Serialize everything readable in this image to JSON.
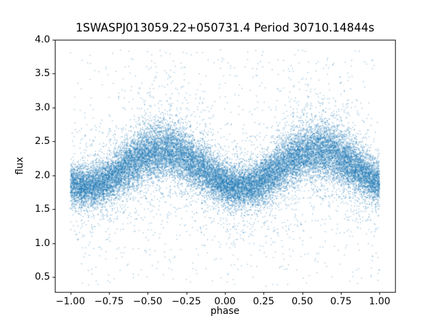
{
  "chart_data": {
    "type": "scatter",
    "title": "1SWASPJ013059.22+050731.4 Period 30710.14844s",
    "xlabel": "phase",
    "ylabel": "flux",
    "xlim": [
      -1.1,
      1.1
    ],
    "ylim": [
      0.28,
      4.0
    ],
    "x_range": [
      -1.0,
      1.0
    ],
    "xticks": [
      -1.0,
      -0.75,
      -0.5,
      -0.25,
      0.0,
      0.25,
      0.5,
      0.75,
      1.0
    ],
    "xtick_labels": [
      "−1.00",
      "−0.75",
      "−0.50",
      "−0.25",
      "0.00",
      "0.25",
      "0.50",
      "0.75",
      "1.00"
    ],
    "yticks": [
      0.5,
      1.0,
      1.5,
      2.0,
      2.5,
      3.0,
      3.5,
      4.0
    ],
    "ytick_labels": [
      "0.5",
      "1.0",
      "1.5",
      "2.0",
      "2.5",
      "3.0",
      "3.5",
      "4.0"
    ],
    "grid": false,
    "legend": null,
    "point_color": "#1f77b4",
    "point_alpha": 0.45,
    "marker_size_px": 1.4,
    "n_points": 26000,
    "frame_color": "#000000",
    "model": {
      "description": "phase-folded light curve: flux = mean_flux + amplitude*sin(2*pi*(phase - (peak_phase-0.25))) + noise; two periods shown over phase -1..1",
      "mean_flux": 2.1,
      "amplitude": 0.27,
      "peak_phase": 0.6,
      "trough_phase": 0.1,
      "flux_at_peak": 2.37,
      "flux_at_trough": 1.83,
      "noise": {
        "core_sigma": 0.15,
        "core_frac": 0.85,
        "mid_sigma": 0.4,
        "mid_frac": 0.12,
        "outlier_frac": 0.03,
        "outlier_range": [
          0.38,
          3.85
        ]
      }
    }
  }
}
